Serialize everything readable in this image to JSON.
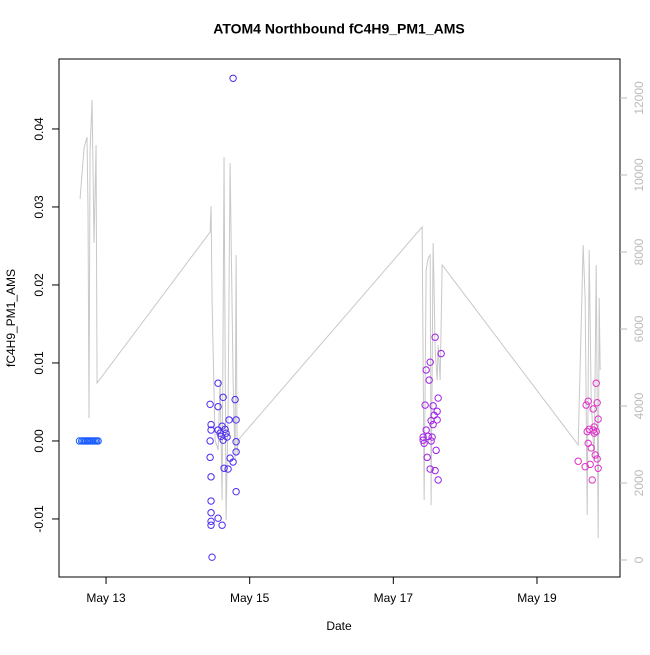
{
  "chart_data": {
    "type": "scatter",
    "title": "ATOM4 Northbound fC4H9_PM1_AMS",
    "x_label": "Date",
    "y_label": "fC4H9_PM1_AMS",
    "xlim": [
      12.345,
      20.156
    ],
    "ylim": [
      -0.01744,
      0.04897
    ],
    "y2lim": [
      -442,
      13013
    ],
    "xticks": [
      {
        "value": 13,
        "label": "May 13"
      },
      {
        "value": 15,
        "label": "May 15"
      },
      {
        "value": 17,
        "label": "May 17"
      },
      {
        "value": 19,
        "label": "May 19"
      }
    ],
    "yticks": [
      -0.01,
      {
        "value": 0,
        "label": "0.00"
      },
      0.01,
      0.02,
      0.03,
      0.04
    ],
    "y2ticks": [
      0,
      2000,
      4000,
      6000,
      8000,
      10000,
      12000
    ],
    "series": [
      {
        "type": "scatter",
        "color": "#1a5cff",
        "x": [
          12.63,
          12.66,
          12.68,
          12.7,
          12.72,
          12.74,
          12.75,
          12.77,
          12.79,
          12.81,
          12.83,
          12.85,
          12.87,
          12.89
        ],
        "values": [
          0,
          0,
          0,
          0,
          0,
          0,
          0,
          0,
          0,
          0,
          0,
          0,
          0,
          0
        ]
      },
      {
        "type": "scatter",
        "color": "#4a2cf0",
        "x": [
          14.449,
          14.462,
          14.462,
          14.449,
          14.449,
          14.462,
          14.462,
          14.462,
          14.462,
          14.462,
          14.476,
          14.56,
          14.56,
          14.56,
          14.56,
          14.588,
          14.602,
          14.616,
          14.616,
          14.63,
          14.63,
          14.643,
          14.657,
          14.671,
          14.685,
          14.699,
          14.713,
          14.727,
          14.769,
          14.769,
          14.797,
          14.811,
          14.811,
          14.811,
          14.811
        ],
        "values": [
          0.0047,
          0.0021,
          0.0014,
          0.0,
          -0.0021,
          -0.0046,
          -0.0077,
          -0.0092,
          -0.0103,
          -0.0108,
          -0.0149,
          0.0074,
          0.0044,
          0.0014,
          -0.0099,
          0.001,
          0.0006,
          0.0019,
          -0.0108,
          0.0056,
          0.0001,
          -0.0035,
          0.0015,
          0.001,
          0.0005,
          -0.0036,
          0.0027,
          -0.0022,
          0.0465,
          -0.0027,
          0.0053,
          0.0027,
          -0.0001,
          -0.0014,
          -0.0065
        ]
      },
      {
        "type": "scatter",
        "color": "#a020e8",
        "x": [
          17.415,
          17.415,
          17.429,
          17.443,
          17.457,
          17.457,
          17.471,
          17.485,
          17.499,
          17.513,
          17.513,
          17.526,
          17.526,
          17.54,
          17.554,
          17.554,
          17.568,
          17.582,
          17.582,
          17.596,
          17.61,
          17.61,
          17.624,
          17.624,
          17.666
        ],
        "values": [
          0.0001,
          0.0005,
          -0.0003,
          0.0046,
          0.0091,
          0.0014,
          -0.0021,
          0.0006,
          0.0078,
          0.0101,
          -0.0036,
          0.0026,
          0.0,
          0.0005,
          0.0021,
          0.0045,
          0.0033,
          0.0133,
          -0.0038,
          -0.0012,
          0.0038,
          0.0027,
          -0.005,
          0.0055,
          0.0112
        ]
      },
      {
        "type": "scatter",
        "color": "#e030c8",
        "x": [
          19.574,
          19.671,
          19.685,
          19.699,
          19.713,
          19.713,
          19.727,
          19.741,
          19.755,
          19.769,
          19.783,
          19.783,
          19.797,
          19.797,
          19.811,
          19.825,
          19.825,
          19.838,
          19.838,
          19.852,
          19.852
        ],
        "values": [
          -0.0026,
          -0.0033,
          0.0046,
          0.0012,
          0.0051,
          -0.0003,
          0.0015,
          -0.003,
          -0.0009,
          -0.005,
          0.0041,
          0.0014,
          0.001,
          0.0018,
          -0.0018,
          0.0074,
          0.0012,
          0.0049,
          -0.0023,
          -0.0035,
          0.0028
        ]
      },
      {
        "type": "line",
        "axis": "y2",
        "color": "#c8c8c8",
        "x": [
          12.638,
          12.694,
          12.735,
          12.749,
          12.763,
          12.777,
          12.805,
          12.833,
          12.861,
          12.875,
          14.449,
          14.462,
          14.476,
          14.518,
          14.56,
          14.588,
          14.616,
          14.643,
          14.671,
          14.699,
          14.727,
          14.769,
          14.797,
          14.811,
          14.825,
          14.839,
          17.401,
          17.429,
          17.457,
          17.485,
          17.513,
          17.526,
          17.554,
          17.568,
          17.582,
          17.61,
          17.624,
          17.652,
          17.68,
          19.574,
          19.643,
          19.671,
          19.699,
          19.727,
          19.755,
          19.797,
          19.825,
          19.852,
          19.866,
          19.88
        ],
        "values": [
          9377,
          10701,
          10987,
          9065,
          3688,
          10597,
          11948,
          8234,
          10779,
          4597,
          8519,
          9195,
          6753,
          3117,
          2857,
          4675,
          1558,
          10468,
          1039,
          3766,
          10312,
          4675,
          2597,
          7922,
          2727,
          3117,
          8649,
          1558,
          7532,
          7844,
          7922,
          1429,
          8234,
          7013,
          5455,
          4675,
          5584,
          4675,
          7662,
          2987,
          8182,
          6753,
          1169,
          8052,
          4156,
          2597,
          7662,
          571,
          6805,
          4935
        ]
      }
    ]
  }
}
